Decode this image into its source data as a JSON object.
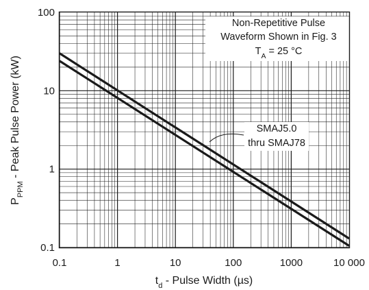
{
  "chart_data": {
    "type": "line",
    "title": "",
    "xlabel": {
      "main": "t",
      "sub": "d",
      "rest": " - Pulse Width (µs)"
    },
    "ylabel": {
      "main": "P",
      "sub": "PPM",
      "rest": " - Peak Pulse Power (kW)"
    },
    "x_scale": "log",
    "y_scale": "log",
    "xlim": [
      0.1,
      10000
    ],
    "ylim": [
      0.1,
      100
    ],
    "x_ticks": [
      0.1,
      1,
      10,
      100,
      1000,
      10000
    ],
    "x_tick_labels": [
      "0.1",
      "1",
      "10",
      "100",
      "1000",
      "10 000"
    ],
    "y_ticks": [
      0.1,
      1,
      10,
      100
    ],
    "y_tick_labels": [
      "0.1",
      "1",
      "10",
      "100"
    ],
    "grid": true,
    "annotation": {
      "line1": "Non-Repetitive Pulse",
      "line2": "Waveform Shown in Fig. 3",
      "ta_main": "T",
      "ta_sub": "A",
      "ta_rest": " = 25 °C"
    },
    "series_label": {
      "line1": "SMAJ5.0",
      "line2": "thru SMAJ78"
    },
    "series": [
      {
        "x": [
          0.1,
          10000
        ],
        "y": [
          30,
          0.13
        ]
      },
      {
        "x": [
          0.1,
          10000
        ],
        "y": [
          24,
          0.105
        ]
      }
    ]
  }
}
